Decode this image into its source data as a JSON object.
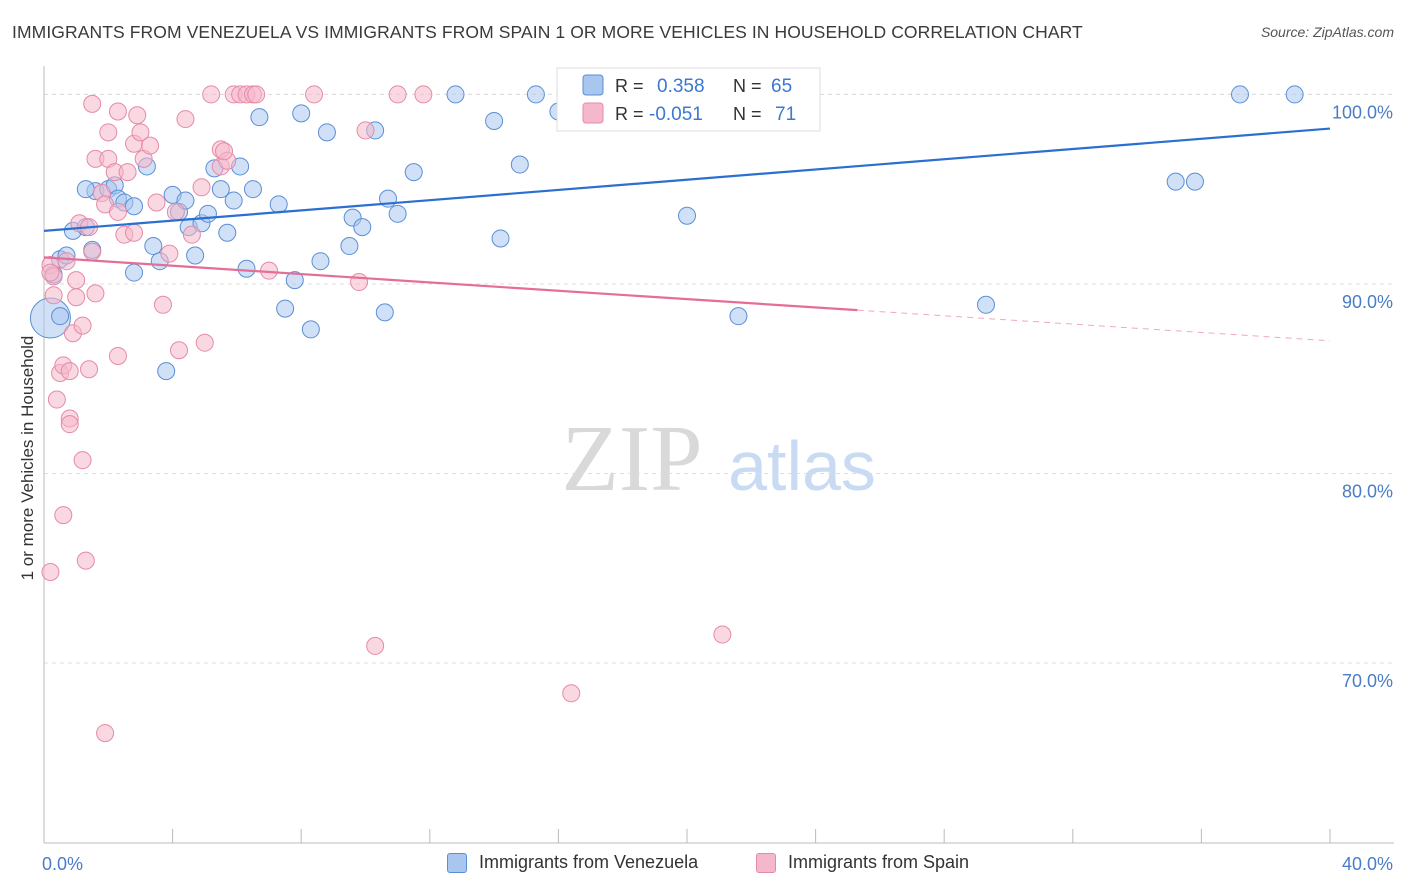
{
  "header": {
    "title": "IMMIGRANTS FROM VENEZUELA VS IMMIGRANTS FROM SPAIN 1 OR MORE VEHICLES IN HOUSEHOLD CORRELATION CHART",
    "source": "Source: ZipAtlas.com"
  },
  "watermark": {
    "zip": "ZIP",
    "atlas": "atlas"
  },
  "colors": {
    "blue_fill": "#a9c6ee",
    "blue_stroke": "#5b8fd4",
    "blue_line": "#2b6fcf",
    "pink_fill": "#f5b8cb",
    "pink_stroke": "#e58aa8",
    "pink_line": "#e46e96",
    "axis_label": "#4a7cc7",
    "grid": "#dddddd"
  },
  "chart_data": {
    "type": "scatter",
    "xlabel": "",
    "ylabel": "1 or more Vehicles in Household",
    "xlim": [
      0,
      40
    ],
    "ylim": [
      60.5,
      101.5
    ],
    "x_tick_labels": [
      "0.0%",
      "40.0%"
    ],
    "y_ticks": [
      70,
      80,
      90,
      100
    ],
    "y_tick_labels": [
      "70.0%",
      "80.0%",
      "90.0%",
      "100.0%"
    ],
    "grid": "horizontal dashed",
    "legend_top": {
      "rows": [
        {
          "r_label": "R =",
          "r_value": "0.358",
          "n_label": "N =",
          "n_value": "65"
        },
        {
          "r_label": "R =",
          "r_value": "-0.051",
          "n_label": "N =",
          "n_value": "71"
        }
      ]
    },
    "legend_bottom": [
      "Immigrants from Venezuela",
      "Immigrants from Spain"
    ],
    "series": [
      {
        "name": "Immigrants from Venezuela",
        "trend": {
          "x": [
            0,
            40
          ],
          "y": [
            92.8,
            98.2
          ],
          "dashed_from": null
        },
        "points": [
          [
            0.2,
            88.2
          ],
          [
            0.3,
            90.5
          ],
          [
            0.5,
            91.3
          ],
          [
            0.7,
            91.5
          ],
          [
            0.9,
            92.8
          ],
          [
            1.3,
            93.0
          ],
          [
            1.5,
            91.8
          ],
          [
            1.6,
            94.9
          ],
          [
            2.0,
            95.0
          ],
          [
            2.2,
            95.2
          ],
          [
            2.3,
            94.5
          ],
          [
            2.5,
            94.3
          ],
          [
            2.8,
            94.1
          ],
          [
            2.8,
            90.6
          ],
          [
            3.2,
            96.2
          ],
          [
            3.4,
            92.0
          ],
          [
            3.6,
            91.2
          ],
          [
            3.8,
            85.4
          ],
          [
            4.0,
            94.7
          ],
          [
            4.2,
            93.8
          ],
          [
            4.4,
            94.4
          ],
          [
            4.5,
            93.0
          ],
          [
            4.7,
            91.5
          ],
          [
            4.9,
            93.2
          ],
          [
            5.1,
            93.7
          ],
          [
            5.3,
            96.1
          ],
          [
            5.5,
            95.0
          ],
          [
            5.7,
            92.7
          ],
          [
            5.9,
            94.4
          ],
          [
            6.1,
            96.2
          ],
          [
            6.3,
            90.8
          ],
          [
            6.5,
            95.0
          ],
          [
            6.7,
            98.8
          ],
          [
            7.3,
            94.2
          ],
          [
            7.5,
            88.7
          ],
          [
            7.8,
            90.2
          ],
          [
            8.0,
            99.0
          ],
          [
            8.3,
            87.6
          ],
          [
            8.6,
            91.2
          ],
          [
            8.8,
            98.0
          ],
          [
            9.5,
            92.0
          ],
          [
            9.6,
            93.5
          ],
          [
            9.9,
            93.0
          ],
          [
            10.3,
            98.1
          ],
          [
            10.6,
            88.5
          ],
          [
            10.7,
            94.5
          ],
          [
            11.0,
            93.7
          ],
          [
            11.5,
            95.9
          ],
          [
            12.8,
            100.0
          ],
          [
            14.0,
            98.6
          ],
          [
            14.2,
            92.4
          ],
          [
            14.8,
            96.3
          ],
          [
            15.3,
            100.0
          ],
          [
            16.0,
            99.1
          ],
          [
            17.0,
            100.0
          ],
          [
            20.0,
            93.6
          ],
          [
            21.6,
            88.3
          ],
          [
            23.1,
            100.0
          ],
          [
            29.3,
            88.9
          ],
          [
            35.2,
            95.4
          ],
          [
            35.8,
            95.4
          ],
          [
            37.2,
            100.0
          ],
          [
            38.9,
            100.0
          ],
          [
            1.3,
            95.0
          ],
          [
            0.5,
            88.3
          ]
        ]
      },
      {
        "name": "Immigrants from Spain",
        "trend": {
          "x": [
            0,
            40
          ],
          "y": [
            91.4,
            87.0
          ],
          "dashed_from": 25.3
        },
        "points": [
          [
            0.2,
            91.0
          ],
          [
            0.2,
            74.8
          ],
          [
            0.3,
            90.4
          ],
          [
            0.3,
            89.4
          ],
          [
            0.4,
            83.9
          ],
          [
            0.5,
            85.3
          ],
          [
            0.6,
            85.7
          ],
          [
            0.6,
            77.8
          ],
          [
            0.7,
            91.2
          ],
          [
            0.8,
            85.4
          ],
          [
            0.8,
            82.9
          ],
          [
            0.8,
            82.6
          ],
          [
            0.9,
            87.4
          ],
          [
            1.0,
            90.2
          ],
          [
            1.0,
            89.3
          ],
          [
            1.1,
            93.2
          ],
          [
            1.2,
            87.8
          ],
          [
            1.2,
            80.7
          ],
          [
            1.3,
            75.4
          ],
          [
            1.4,
            85.5
          ],
          [
            1.4,
            93.0
          ],
          [
            1.5,
            91.7
          ],
          [
            1.5,
            99.5
          ],
          [
            1.6,
            89.5
          ],
          [
            1.6,
            96.6
          ],
          [
            1.8,
            94.8
          ],
          [
            1.9,
            94.2
          ],
          [
            1.9,
            66.3
          ],
          [
            2.0,
            96.6
          ],
          [
            2.0,
            98.0
          ],
          [
            2.2,
            95.9
          ],
          [
            2.3,
            93.8
          ],
          [
            2.3,
            99.1
          ],
          [
            2.3,
            86.2
          ],
          [
            2.5,
            92.6
          ],
          [
            2.6,
            95.9
          ],
          [
            2.8,
            97.4
          ],
          [
            2.8,
            92.7
          ],
          [
            2.9,
            98.9
          ],
          [
            3.0,
            98.0
          ],
          [
            3.1,
            96.6
          ],
          [
            3.3,
            97.3
          ],
          [
            3.5,
            94.3
          ],
          [
            3.7,
            88.9
          ],
          [
            3.9,
            91.6
          ],
          [
            4.1,
            93.8
          ],
          [
            4.2,
            86.5
          ],
          [
            4.4,
            98.7
          ],
          [
            4.6,
            92.6
          ],
          [
            4.9,
            95.1
          ],
          [
            5.0,
            86.9
          ],
          [
            5.2,
            100.0
          ],
          [
            5.5,
            96.2
          ],
          [
            5.5,
            97.1
          ],
          [
            5.7,
            96.5
          ],
          [
            5.9,
            100.0
          ],
          [
            6.1,
            100.0
          ],
          [
            6.3,
            100.0
          ],
          [
            6.5,
            100.0
          ],
          [
            6.6,
            100.0
          ],
          [
            7.0,
            90.7
          ],
          [
            8.4,
            100.0
          ],
          [
            9.8,
            90.1
          ],
          [
            10.0,
            98.1
          ],
          [
            10.3,
            70.9
          ],
          [
            11.0,
            100.0
          ],
          [
            11.8,
            100.0
          ],
          [
            16.4,
            68.4
          ],
          [
            21.1,
            71.5
          ],
          [
            5.6,
            97.0
          ],
          [
            0.2,
            90.6
          ]
        ]
      }
    ]
  }
}
